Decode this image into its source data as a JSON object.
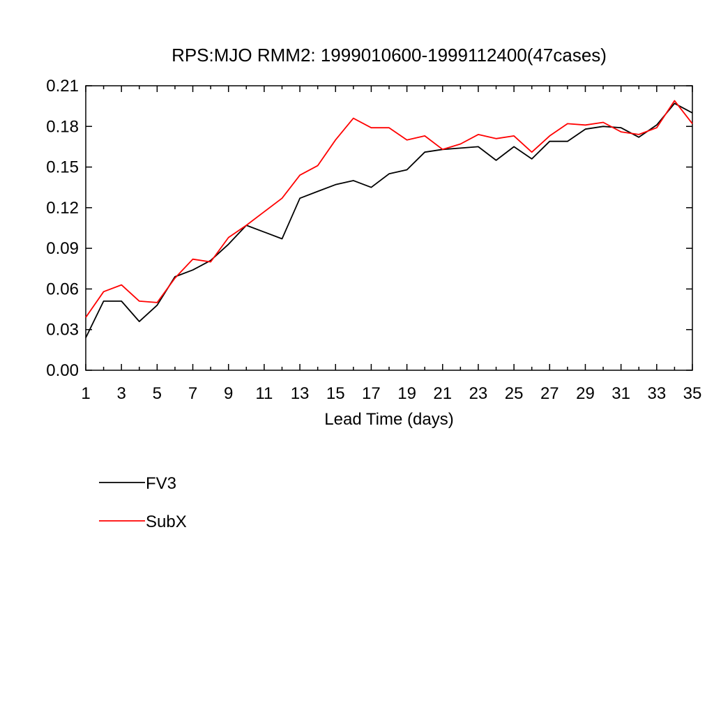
{
  "chart_data": {
    "type": "line",
    "title": "RPS:MJO RMM2: 1999010600-1999112400(47cases)",
    "xlabel": "Lead Time (days)",
    "ylabel": "",
    "xlim": [
      1,
      35
    ],
    "ylim": [
      0,
      0.21
    ],
    "x_ticks": [
      "1",
      "3",
      "5",
      "7",
      "9",
      "11",
      "13",
      "15",
      "17",
      "19",
      "21",
      "23",
      "25",
      "27",
      "29",
      "31",
      "33",
      "35"
    ],
    "y_ticks": [
      "0.00",
      "0.03",
      "0.06",
      "0.09",
      "0.12",
      "0.15",
      "0.18",
      "0.21"
    ],
    "grid": false,
    "legend_position": "bottom-left",
    "x": [
      1,
      2,
      3,
      4,
      5,
      6,
      7,
      8,
      9,
      10,
      11,
      12,
      13,
      14,
      15,
      16,
      17,
      18,
      19,
      20,
      21,
      22,
      23,
      24,
      25,
      26,
      27,
      28,
      29,
      30,
      31,
      32,
      33,
      34,
      35
    ],
    "series": [
      {
        "name": "FV3",
        "color": "#000000",
        "values": [
          0.024,
          0.051,
          0.051,
          0.036,
          0.048,
          0.069,
          0.074,
          0.081,
          0.093,
          0.107,
          0.102,
          0.097,
          0.127,
          0.132,
          0.137,
          0.14,
          0.135,
          0.145,
          0.148,
          0.161,
          0.163,
          0.164,
          0.165,
          0.155,
          0.165,
          0.156,
          0.169,
          0.169,
          0.178,
          0.18,
          0.179,
          0.172,
          0.181,
          0.197,
          0.19
        ]
      },
      {
        "name": "SubX",
        "color": "#ff0000",
        "values": [
          0.039,
          0.058,
          0.063,
          0.051,
          0.05,
          0.068,
          0.082,
          0.08,
          0.098,
          0.107,
          0.117,
          0.127,
          0.144,
          0.151,
          0.17,
          0.186,
          0.179,
          0.179,
          0.17,
          0.173,
          0.163,
          0.167,
          0.174,
          0.171,
          0.173,
          0.161,
          0.173,
          0.182,
          0.181,
          0.183,
          0.176,
          0.174,
          0.179,
          0.199,
          0.182
        ]
      }
    ]
  }
}
